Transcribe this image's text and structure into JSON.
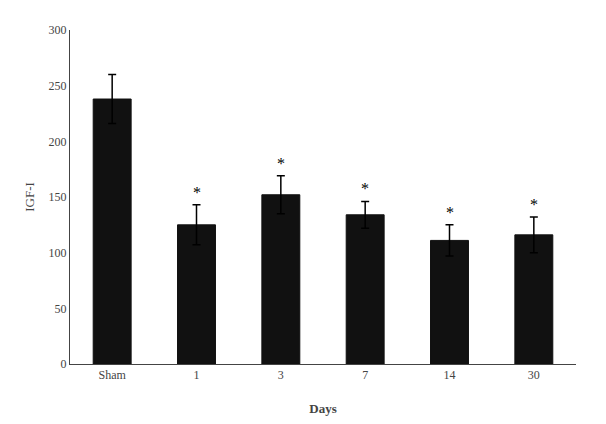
{
  "chart_data": {
    "type": "bar",
    "categories": [
      "Sham",
      "1",
      "3",
      "7",
      "14",
      "30"
    ],
    "values": [
      238,
      125,
      152,
      134,
      111,
      116
    ],
    "errors": [
      22,
      18,
      17,
      12,
      14,
      16
    ],
    "color": "#111111",
    "xlabel": "Days",
    "ylabel": "IGF-I",
    "ylim": [
      0,
      300
    ],
    "yticks": [
      0,
      50,
      100,
      150,
      200,
      250,
      300
    ],
    "grid": false,
    "annotations": [
      {
        "text": "*",
        "category": "1"
      },
      {
        "text": "*",
        "category": "3"
      },
      {
        "text": "*",
        "category": "7"
      },
      {
        "text": "*",
        "category": "14"
      },
      {
        "text": "*",
        "category": "30"
      }
    ]
  }
}
